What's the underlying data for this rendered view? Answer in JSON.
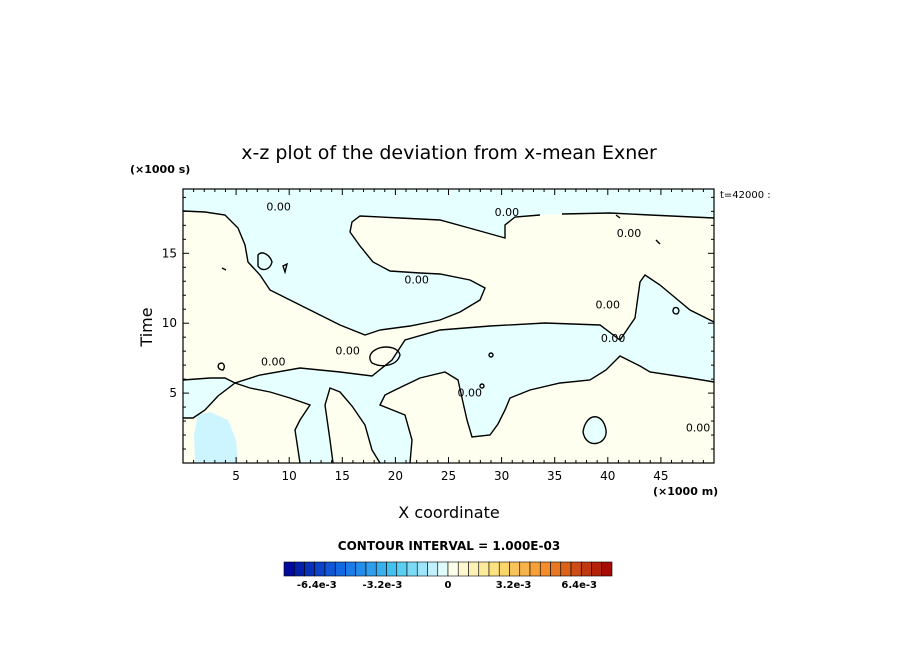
{
  "chart_data": {
    "type": "contour",
    "title": "x-z plot of the deviation from x-mean Exner",
    "xlabel": "X coordinate",
    "ylabel": "Time",
    "x_unit": "(×1000 m)",
    "y_unit": "(×1000 s)",
    "time_stamp": "t=42000 :",
    "xlim": [
      0,
      50
    ],
    "ylim": [
      0,
      19.6
    ],
    "x_ticks": [
      5,
      10,
      15,
      20,
      25,
      30,
      35,
      40,
      45
    ],
    "y_ticks": [
      5,
      10,
      15
    ],
    "contour_label": "0.00",
    "contour_interval_label": "CONTOUR INTERVAL = 1.000E-03",
    "colorbar": {
      "range": [
        -0.008,
        0.008
      ],
      "n_levels": 32,
      "tick_labels": [
        "-6.4e-3",
        "-3.2e-3",
        "0",
        "3.2e-3",
        "6.4e-3"
      ],
      "tick_values": [
        -0.0064,
        -0.0032,
        0,
        0.0032,
        0.0064
      ]
    },
    "fill_colors": {
      "negative": "#e6ffff",
      "positive": "#fffff0",
      "weak_negative": "#ccf5ff"
    },
    "zero_contour_labels": [
      {
        "text": "0.00",
        "x": 9.0,
        "y": 18.2
      },
      {
        "text": "0.00",
        "x": 30.5,
        "y": 17.8
      },
      {
        "text": "0.00",
        "x": 42.0,
        "y": 16.3
      },
      {
        "text": "0.00",
        "x": 22.0,
        "y": 13.0
      },
      {
        "text": "0.00",
        "x": 40.0,
        "y": 11.2
      },
      {
        "text": "0.00",
        "x": 40.5,
        "y": 8.8
      },
      {
        "text": "0.00",
        "x": 8.5,
        "y": 7.1
      },
      {
        "text": "0.00",
        "x": 15.5,
        "y": 7.9
      },
      {
        "text": "0.00",
        "x": 27.0,
        "y": 4.9
      },
      {
        "text": "0.00",
        "x": 48.5,
        "y": 2.4
      }
    ]
  }
}
